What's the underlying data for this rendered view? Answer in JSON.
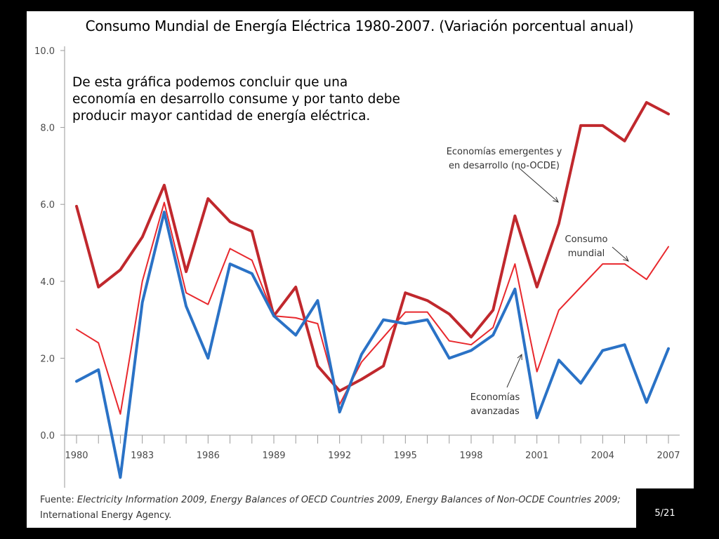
{
  "slide": {
    "title": "Consumo Mundial de Energía Eléctrica 1980-2007. (Variación porcentual anual)",
    "conclusion_lines": [
      "De esta gráfica podemos concluir que una",
      "economía en desarrollo consume y por tanto debe",
      "producir mayor cantidad de energía eléctrica."
    ],
    "source": {
      "label": "Fuente:",
      "line1_italic": "Electricity Information 2009, Energy Balances of OECD Countries 2009, Energy Balances of Non-OCDE Countries 2009;",
      "line2": "International Energy Agency."
    },
    "page_number": "5/21"
  },
  "chart_data": {
    "type": "line",
    "title": "",
    "xlabel": "",
    "ylabel": "",
    "ylim": [
      -1.2,
      10.0
    ],
    "xlim": [
      1980,
      2007
    ],
    "x_tick_labels": [
      "1980",
      "1983",
      "1986",
      "1989",
      "1992",
      "1995",
      "1998",
      "2001",
      "2004",
      "2007"
    ],
    "y_tick_labels": [
      "0.0",
      "2.0",
      "4.0",
      "6.0",
      "8.0",
      "10.0"
    ],
    "grid": false,
    "x": [
      1980,
      1981,
      1982,
      1983,
      1984,
      1985,
      1986,
      1987,
      1988,
      1989,
      1990,
      1991,
      1992,
      1993,
      1994,
      1995,
      1996,
      1997,
      1998,
      1999,
      2000,
      2001,
      2002,
      2003,
      2004,
      2005,
      2006,
      2007
    ],
    "series": [
      {
        "name": "Economías emergentes y en desarrollo (no-OCDE)",
        "color": "#c0282d",
        "stroke": "thick",
        "values": [
          5.95,
          3.85,
          4.3,
          5.15,
          6.5,
          4.25,
          6.15,
          5.55,
          5.3,
          3.1,
          3.85,
          1.8,
          1.15,
          1.45,
          1.8,
          3.7,
          3.5,
          3.15,
          2.55,
          3.25,
          5.7,
          3.85,
          5.5,
          8.05,
          8.05,
          7.65,
          8.65,
          8.35
        ]
      },
      {
        "name": "Consumo mundial",
        "color": "#e8282d",
        "stroke": "thin",
        "values": [
          2.75,
          2.4,
          0.55,
          4.0,
          6.05,
          3.7,
          3.4,
          4.85,
          4.55,
          3.1,
          3.05,
          2.9,
          0.8,
          1.9,
          2.55,
          3.2,
          3.2,
          2.45,
          2.35,
          2.8,
          4.45,
          1.65,
          3.25,
          3.85,
          4.45,
          4.45,
          4.05,
          4.9
        ]
      },
      {
        "name": "Economías avanzadas",
        "color": "#2a72c6",
        "stroke": "thick",
        "values": [
          1.4,
          1.7,
          -1.1,
          3.45,
          5.8,
          3.35,
          2.0,
          4.45,
          4.2,
          3.1,
          2.6,
          3.5,
          0.6,
          2.1,
          3.0,
          2.9,
          3.0,
          2.0,
          2.2,
          2.6,
          3.8,
          0.45,
          1.95,
          1.35,
          2.2,
          2.35,
          0.85,
          2.25
        ]
      }
    ],
    "annotations": [
      {
        "lines": [
          "Economías emergentes y",
          "en desarrollo (no-OCDE)"
        ]
      },
      {
        "lines": [
          "Consumo",
          "mundial"
        ]
      },
      {
        "lines": [
          "Economías",
          "avanzadas"
        ]
      }
    ]
  }
}
